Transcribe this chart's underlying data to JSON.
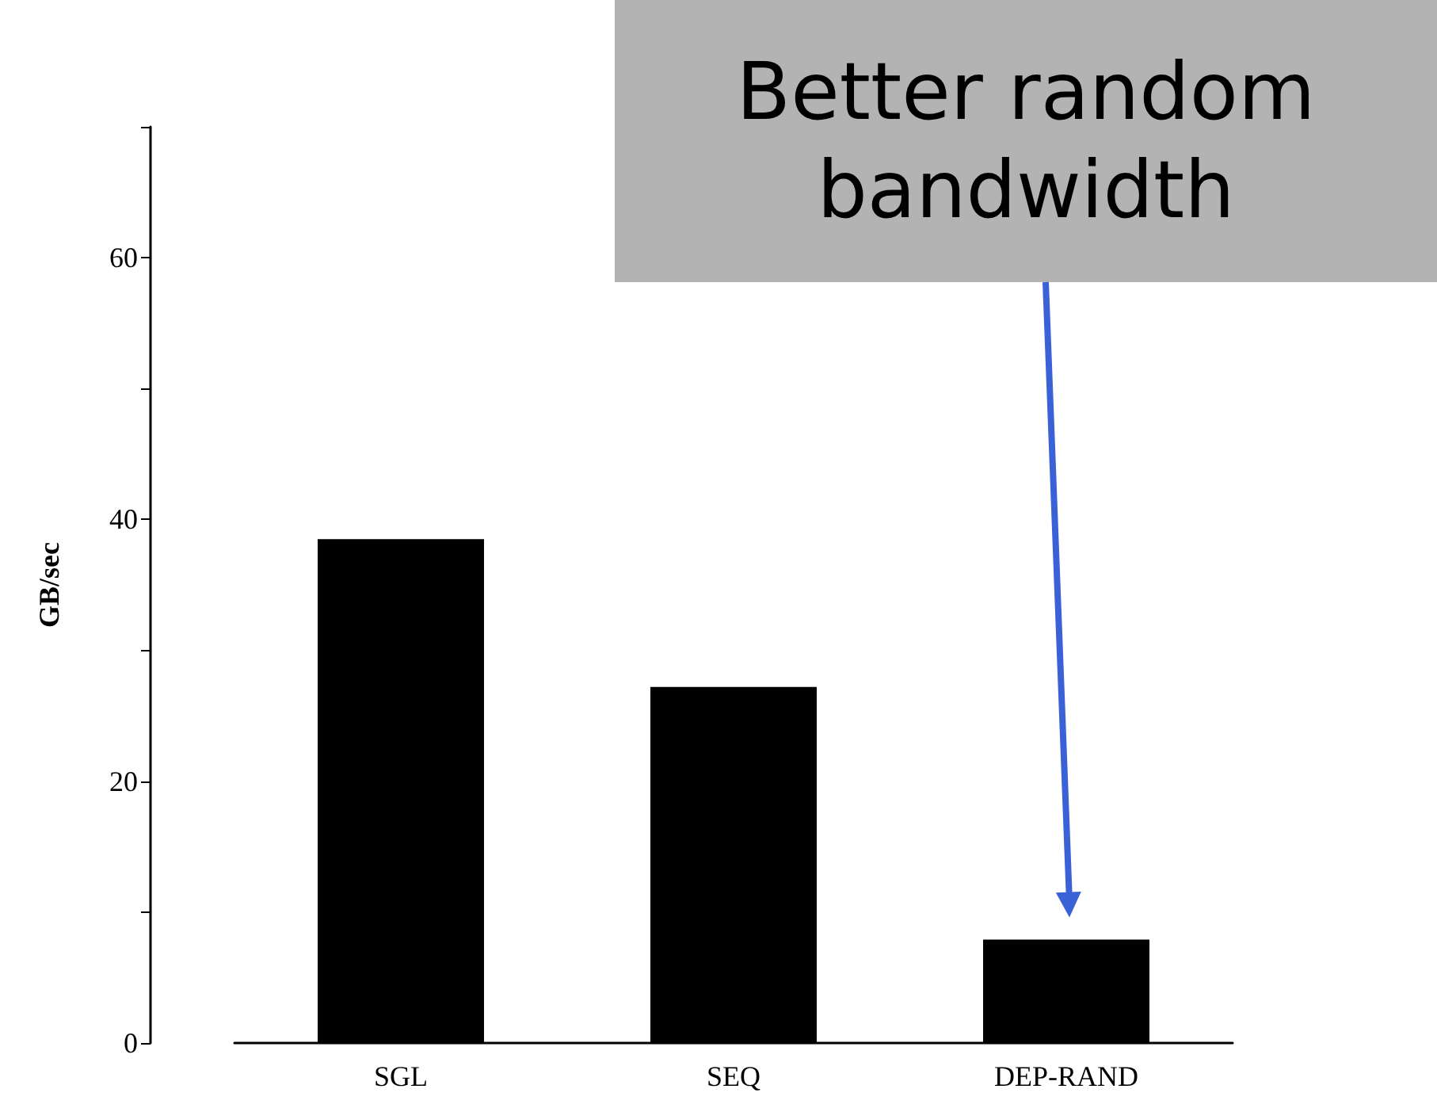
{
  "chart_data": {
    "type": "bar",
    "ylabel": "GB/sec",
    "categories": [
      "SGL",
      "SEQ",
      "DEP-RAND"
    ],
    "values": [
      38.5,
      27.2,
      7.9
    ],
    "color": "#000000",
    "ylim": [
      0,
      70
    ],
    "yticks": [
      0,
      20,
      40,
      60
    ],
    "grid": false,
    "annotations": [
      "Better random bandwidth"
    ]
  }
}
